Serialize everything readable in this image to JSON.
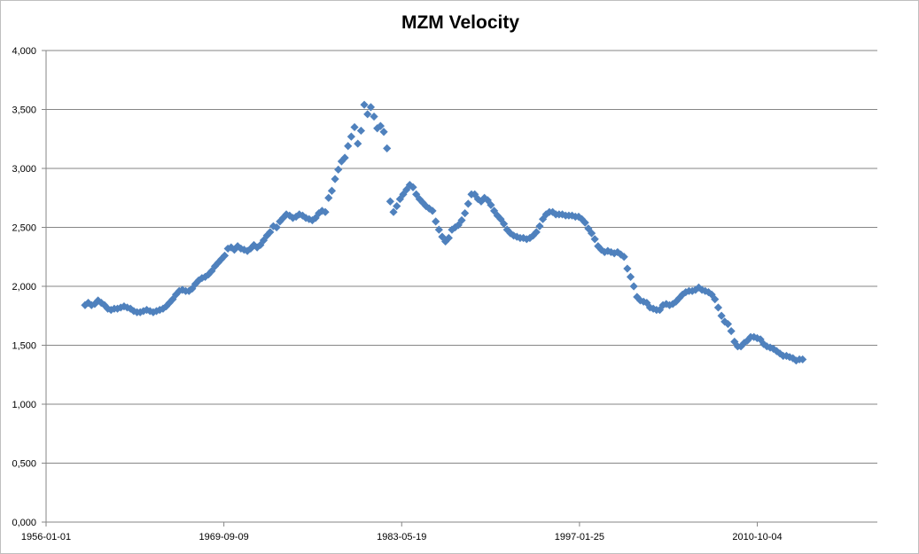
{
  "chart_data": {
    "type": "scatter",
    "title": "MZM Velocity",
    "xlabel": "",
    "ylabel": "",
    "xlim": [
      "1956-01-01",
      "2020-01-01"
    ],
    "ylim": [
      0,
      4
    ],
    "x_tick_labels": [
      "1956-01-01",
      "1969-09-09",
      "1983-05-19",
      "1997-01-25",
      "2010-10-04"
    ],
    "y_tick_labels": [
      "0,000",
      "0,500",
      "1,000",
      "1,500",
      "2,000",
      "2,500",
      "3,000",
      "3,500",
      "4,000"
    ],
    "y_ticks": [
      0,
      0.5,
      1.0,
      1.5,
      2.0,
      2.5,
      3.0,
      3.5,
      4.0
    ],
    "grid": "horizontal",
    "legend": "none",
    "marker": "diamond",
    "marker_color": "#4f81bd",
    "series": [
      {
        "x": [
          "1959-01-01",
          "1959-04-01",
          "1959-07-01",
          "1959-10-01",
          "1960-01-01",
          "1960-04-01",
          "1960-07-01",
          "1960-10-01",
          "1961-01-01",
          "1961-04-01",
          "1961-07-01",
          "1961-10-01",
          "1962-01-01",
          "1962-04-01",
          "1962-07-01",
          "1962-10-01",
          "1963-01-01",
          "1963-04-01",
          "1963-07-01",
          "1963-10-01",
          "1964-01-01",
          "1964-04-01",
          "1964-07-01",
          "1964-10-01",
          "1965-01-01",
          "1965-04-01",
          "1965-07-01",
          "1965-10-01",
          "1966-01-01",
          "1966-04-01",
          "1966-07-01",
          "1966-10-01",
          "1967-01-01",
          "1967-04-01",
          "1967-07-01",
          "1967-10-01",
          "1968-01-01",
          "1968-04-01",
          "1968-07-01",
          "1968-10-01",
          "1969-01-01",
          "1969-04-01",
          "1969-07-01",
          "1969-10-01",
          "1970-01-01",
          "1970-04-01",
          "1970-07-01",
          "1970-10-01",
          "1971-01-01",
          "1971-04-01",
          "1971-07-01",
          "1971-10-01",
          "1972-01-01",
          "1972-04-01",
          "1972-07-01",
          "1972-10-01",
          "1973-01-01",
          "1973-04-01",
          "1973-07-01",
          "1973-10-01",
          "1974-01-01",
          "1974-04-01",
          "1974-07-01",
          "1974-10-01",
          "1975-01-01",
          "1975-04-01",
          "1975-07-01",
          "1975-10-01",
          "1976-01-01",
          "1976-04-01",
          "1976-07-01",
          "1976-10-01",
          "1977-01-01",
          "1977-04-01",
          "1977-07-01",
          "1977-10-01",
          "1978-01-01",
          "1978-04-01",
          "1978-07-01",
          "1978-10-01",
          "1979-01-01",
          "1979-04-01",
          "1979-07-01",
          "1979-10-01",
          "1980-01-01",
          "1980-04-01",
          "1980-07-01",
          "1980-10-01",
          "1981-01-01",
          "1981-04-01",
          "1981-07-01",
          "1981-10-01",
          "1982-01-01",
          "1982-04-01",
          "1982-07-01",
          "1982-10-01",
          "1983-01-01",
          "1983-04-01",
          "1983-07-01",
          "1983-10-01",
          "1984-01-01",
          "1984-04-01",
          "1984-07-01",
          "1984-10-01",
          "1985-01-01",
          "1985-04-01",
          "1985-07-01",
          "1985-10-01",
          "1986-01-01",
          "1986-04-01",
          "1986-07-01",
          "1986-10-01",
          "1987-01-01",
          "1987-04-01",
          "1987-07-01",
          "1987-10-01",
          "1988-01-01",
          "1988-04-01",
          "1988-07-01",
          "1988-10-01",
          "1989-01-01",
          "1989-04-01",
          "1989-07-01",
          "1989-10-01",
          "1990-01-01",
          "1990-04-01",
          "1990-07-01",
          "1990-10-01",
          "1991-01-01",
          "1991-04-01",
          "1991-07-01",
          "1991-10-01",
          "1992-01-01",
          "1992-04-01",
          "1992-07-01",
          "1992-10-01",
          "1993-01-01",
          "1993-04-01",
          "1993-07-01",
          "1993-10-01",
          "1994-01-01",
          "1994-04-01",
          "1994-07-01",
          "1994-10-01",
          "1995-01-01",
          "1995-04-01",
          "1995-07-01",
          "1995-10-01",
          "1996-01-01",
          "1996-04-01",
          "1996-07-01",
          "1996-10-01",
          "1997-01-01",
          "1997-04-01",
          "1997-07-01",
          "1997-10-01",
          "1998-01-01",
          "1998-04-01",
          "1998-07-01",
          "1998-10-01",
          "1999-01-01",
          "1999-04-01",
          "1999-07-01",
          "1999-10-01",
          "2000-01-01",
          "2000-04-01",
          "2000-07-01",
          "2000-10-01",
          "2001-01-01",
          "2001-04-01",
          "2001-07-01",
          "2001-10-01",
          "2002-01-01",
          "2002-04-01",
          "2002-07-01",
          "2002-10-01",
          "2003-01-01",
          "2003-04-01",
          "2003-07-01",
          "2003-10-01",
          "2004-01-01",
          "2004-04-01",
          "2004-07-01",
          "2004-10-01",
          "2005-01-01",
          "2005-04-01",
          "2005-07-01",
          "2005-10-01",
          "2006-01-01",
          "2006-04-01",
          "2006-07-01",
          "2006-10-01",
          "2007-01-01",
          "2007-04-01",
          "2007-07-01",
          "2007-10-01",
          "2008-01-01",
          "2008-04-01",
          "2008-07-01",
          "2008-10-01",
          "2009-01-01",
          "2009-04-01",
          "2009-07-01",
          "2009-10-01",
          "2010-01-01",
          "2010-04-01",
          "2010-07-01",
          "2010-10-01",
          "2011-01-01",
          "2011-04-01",
          "2011-07-01",
          "2011-10-01",
          "2012-01-01",
          "2012-04-01",
          "2012-07-01",
          "2012-10-01",
          "2013-01-01",
          "2013-04-01",
          "2013-07-01",
          "2013-10-01",
          "2014-01-01",
          "2014-04-01"
        ],
        "y": [
          1.84,
          1.86,
          1.84,
          1.85,
          1.88,
          1.86,
          1.84,
          1.81,
          1.8,
          1.81,
          1.81,
          1.82,
          1.83,
          1.82,
          1.81,
          1.79,
          1.78,
          1.78,
          1.79,
          1.8,
          1.79,
          1.78,
          1.79,
          1.8,
          1.81,
          1.83,
          1.86,
          1.89,
          1.93,
          1.96,
          1.97,
          1.96,
          1.96,
          1.98,
          2.02,
          2.05,
          2.07,
          2.08,
          2.1,
          2.13,
          2.17,
          2.2,
          2.23,
          2.26,
          2.32,
          2.33,
          2.31,
          2.34,
          2.32,
          2.31,
          2.3,
          2.32,
          2.35,
          2.33,
          2.35,
          2.39,
          2.43,
          2.46,
          2.51,
          2.5,
          2.55,
          2.58,
          2.61,
          2.6,
          2.58,
          2.59,
          2.61,
          2.6,
          2.58,
          2.57,
          2.56,
          2.58,
          2.62,
          2.64,
          2.63,
          2.75,
          2.81,
          2.91,
          2.99,
          3.06,
          3.09,
          3.19,
          3.27,
          3.35,
          3.21,
          3.32,
          3.54,
          3.46,
          3.52,
          3.44,
          3.34,
          3.36,
          3.31,
          3.17,
          2.72,
          2.63,
          2.68,
          2.74,
          2.78,
          2.82,
          2.86,
          2.84,
          2.78,
          2.74,
          2.71,
          2.68,
          2.66,
          2.64,
          2.55,
          2.48,
          2.42,
          2.38,
          2.41,
          2.48,
          2.5,
          2.52,
          2.56,
          2.62,
          2.7,
          2.78,
          2.78,
          2.74,
          2.72,
          2.75,
          2.73,
          2.69,
          2.64,
          2.6,
          2.57,
          2.53,
          2.48,
          2.45,
          2.43,
          2.42,
          2.41,
          2.41,
          2.4,
          2.41,
          2.43,
          2.46,
          2.51,
          2.57,
          2.61,
          2.63,
          2.63,
          2.61,
          2.61,
          2.61,
          2.6,
          2.6,
          2.6,
          2.59,
          2.59,
          2.57,
          2.54,
          2.49,
          2.45,
          2.4,
          2.34,
          2.31,
          2.29,
          2.3,
          2.29,
          2.28,
          2.29,
          2.27,
          2.25,
          2.15,
          2.08,
          2.0,
          1.91,
          1.88,
          1.87,
          1.86,
          1.82,
          1.81,
          1.8,
          1.8,
          1.84,
          1.85,
          1.84,
          1.85,
          1.87,
          1.9,
          1.93,
          1.95,
          1.96,
          1.96,
          1.97,
          1.99,
          1.97,
          1.96,
          1.95,
          1.93,
          1.89,
          1.82,
          1.75,
          1.7,
          1.68,
          1.62,
          1.53,
          1.49,
          1.49,
          1.52,
          1.54,
          1.57,
          1.57,
          1.56,
          1.55,
          1.51,
          1.49,
          1.48,
          1.47,
          1.45,
          1.43,
          1.41,
          1.41,
          1.4,
          1.39,
          1.37,
          1.38,
          1.38
        ]
      }
    ]
  }
}
